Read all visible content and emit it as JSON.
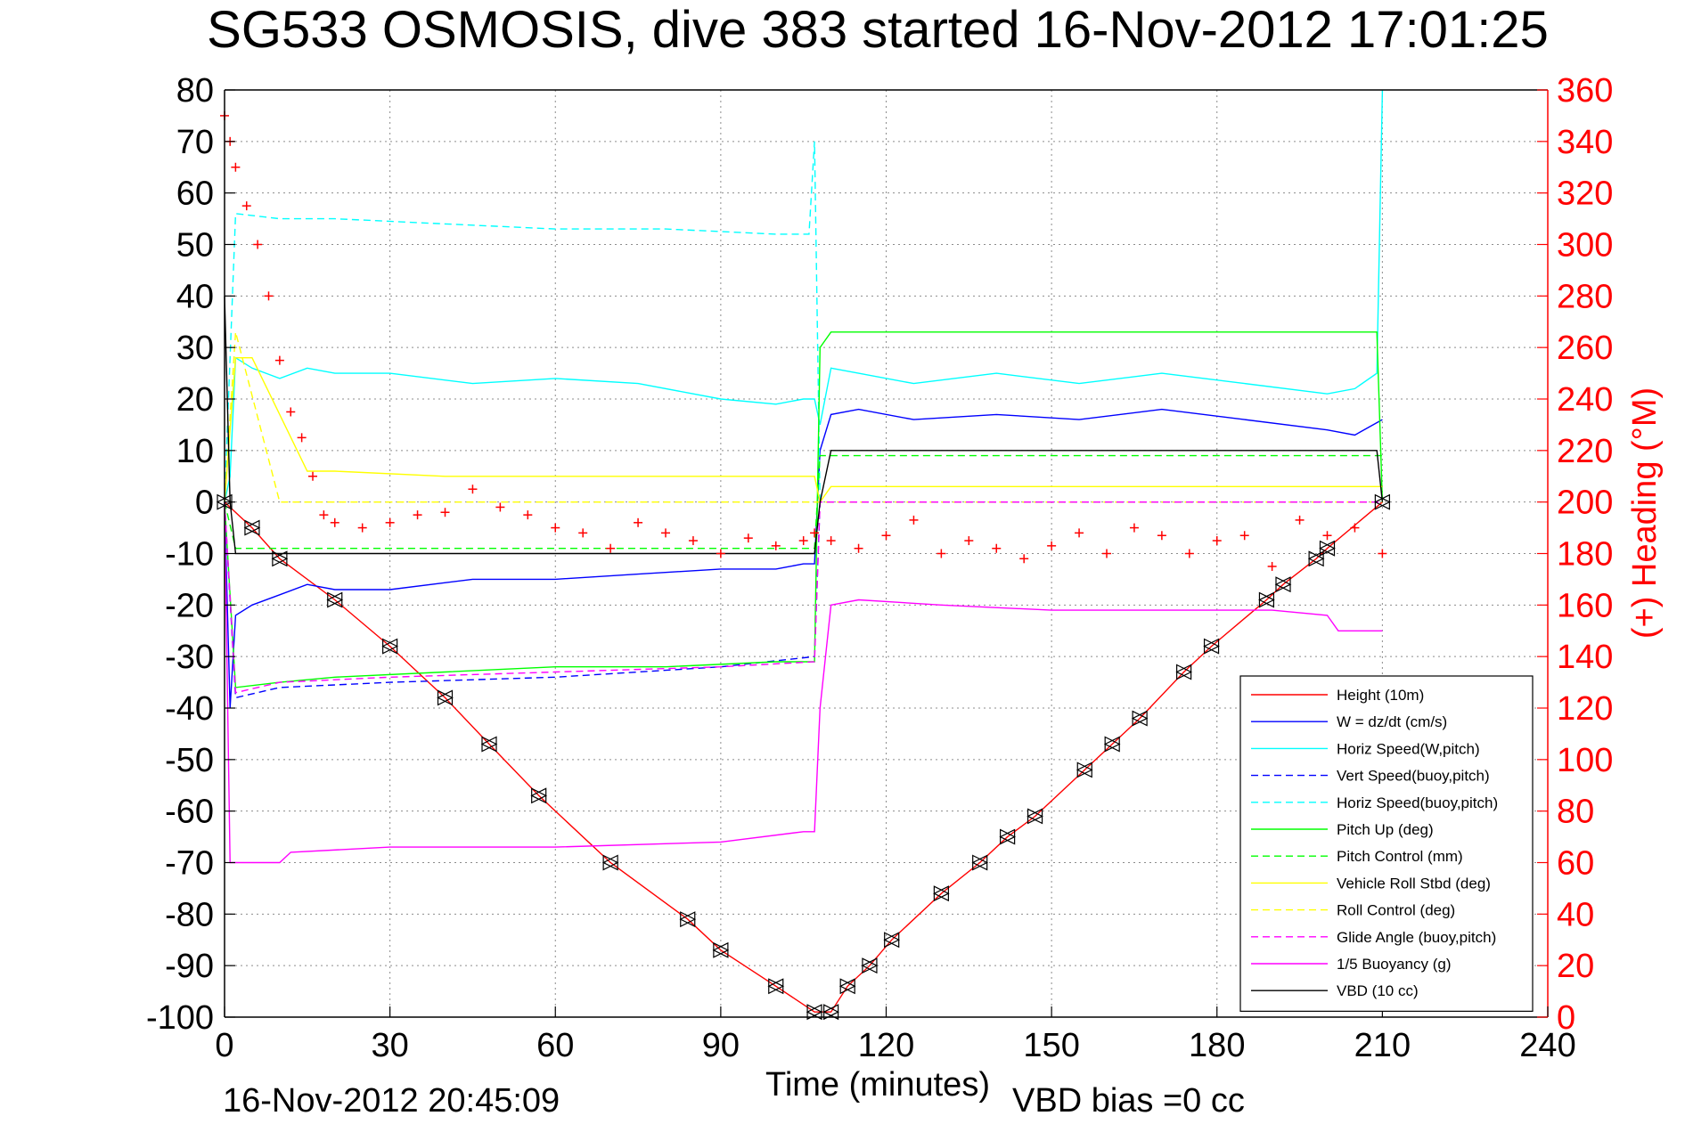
{
  "chart_data": {
    "type": "line",
    "title": "SG533 OSMOSIS, dive 383 started 16-Nov-2012 17:01:25",
    "xlabel": "Time (minutes)",
    "ylabel": "",
    "ylabel_right": "(+) Heading (°M)",
    "xlim": [
      0,
      240
    ],
    "ylim": [
      -100,
      80
    ],
    "ylim_right": [
      0,
      360
    ],
    "x_ticks": [
      "0",
      "30",
      "60",
      "90",
      "120",
      "150",
      "180",
      "210",
      "240"
    ],
    "y_ticks": [
      "80",
      "70",
      "60",
      "50",
      "40",
      "30",
      "20",
      "10",
      "0",
      "-10",
      "-20",
      "-30",
      "-40",
      "-50",
      "-60",
      "-70",
      "-80",
      "-90",
      "-100"
    ],
    "y_ticks_right": [
      "360",
      "340",
      "320",
      "300",
      "280",
      "260",
      "240",
      "220",
      "200",
      "180",
      "160",
      "140",
      "120",
      "100",
      "80",
      "60",
      "40",
      "20",
      "0"
    ],
    "grid": true,
    "legend_position": "bottom-right",
    "footer_left": "16-Nov-2012 20:45:09",
    "footer_right": "VBD bias =0 cc",
    "colors": {
      "red": "#ff0000",
      "blue": "#0000ff",
      "cyan": "#00ffff",
      "green": "#00ff00",
      "yellow": "#ffff00",
      "magenta": "#ff00ff",
      "black": "#000000"
    },
    "series": [
      {
        "name": "Height (10m)",
        "color": "#ff0000",
        "style": "solid",
        "x": [
          0,
          5,
          10,
          20,
          30,
          40,
          48,
          57,
          70,
          84,
          90,
          100,
          107,
          110,
          113,
          117,
          121,
          130,
          137,
          142,
          147,
          156,
          161,
          166,
          174,
          179,
          189,
          192,
          198,
          200,
          210
        ],
        "y": [
          0,
          -5,
          -11,
          -19,
          -28,
          -38,
          -47,
          -57,
          -70,
          -81,
          -87,
          -94,
          -99,
          -99,
          -94,
          -90,
          -85,
          -76,
          -70,
          -65,
          -61,
          -52,
          -47,
          -42,
          -33,
          -28,
          -19,
          -16,
          -11,
          -9,
          0
        ]
      },
      {
        "name": "W = dz/dt (cm/s)",
        "color": "#0000ff",
        "style": "solid",
        "x": [
          0,
          1,
          2,
          5,
          10,
          15,
          20,
          30,
          45,
          60,
          75,
          90,
          100,
          105,
          107,
          108,
          110,
          115,
          125,
          140,
          155,
          170,
          185,
          200,
          205,
          210
        ],
        "y": [
          0,
          -40,
          -22,
          -20,
          -18,
          -16,
          -17,
          -17,
          -15,
          -15,
          -14,
          -13,
          -13,
          -12,
          -12,
          10,
          17,
          18,
          16,
          17,
          16,
          18,
          16,
          14,
          13,
          16
        ]
      },
      {
        "name": "Horiz Speed(W,pitch)",
        "color": "#00ffff",
        "style": "solid",
        "x": [
          0,
          1,
          2,
          5,
          10,
          15,
          20,
          30,
          45,
          60,
          75,
          90,
          100,
          105,
          107,
          108,
          110,
          115,
          125,
          140,
          155,
          170,
          185,
          200,
          205,
          209,
          210
        ],
        "y": [
          0,
          5,
          28,
          26,
          24,
          26,
          25,
          25,
          23,
          24,
          23,
          20,
          19,
          20,
          20,
          15,
          26,
          25,
          23,
          25,
          23,
          25,
          23,
          21,
          22,
          25,
          80
        ]
      },
      {
        "name": "Vert Speed(buoy,pitch)",
        "color": "#0000ff",
        "style": "dashed",
        "x": [
          0,
          2,
          10,
          30,
          60,
          90,
          107,
          108,
          210
        ],
        "y": [
          0,
          -38,
          -36,
          -35,
          -34,
          -32,
          -30,
          0,
          0
        ]
      },
      {
        "name": "Horiz Speed(buoy,pitch)",
        "color": "#00ffff",
        "style": "dashed",
        "x": [
          0,
          2,
          10,
          20,
          40,
          60,
          80,
          100,
          106,
          107,
          108
        ],
        "y": [
          0,
          56,
          55,
          55,
          54,
          53,
          53,
          52,
          52,
          70,
          0
        ]
      },
      {
        "name": "Pitch Up (deg)",
        "color": "#00ff00",
        "style": "solid",
        "x": [
          0,
          2,
          10,
          20,
          40,
          60,
          80,
          100,
          107,
          108,
          110,
          130,
          150,
          170,
          190,
          209,
          210
        ],
        "y": [
          0,
          -36,
          -35,
          -34,
          -33,
          -32,
          -32,
          -31,
          -31,
          30,
          33,
          33,
          33,
          33,
          33,
          33,
          0
        ]
      },
      {
        "name": "Pitch Control (mm)",
        "color": "#00ff00",
        "style": "dashed",
        "x": [
          0,
          2,
          107,
          108,
          210
        ],
        "y": [
          0,
          -9,
          -9,
          9,
          9
        ]
      },
      {
        "name": "Vehicle Roll Stbd (deg)",
        "color": "#ffff00",
        "style": "solid",
        "x": [
          0,
          2,
          5,
          15,
          20,
          40,
          60,
          80,
          100,
          107,
          108,
          110,
          130,
          150,
          170,
          190,
          210
        ],
        "y": [
          0,
          28,
          28,
          6,
          6,
          5,
          5,
          5,
          5,
          5,
          0,
          3,
          3,
          3,
          3,
          3,
          3
        ]
      },
      {
        "name": "Roll Control (deg)",
        "color": "#ffff00",
        "style": "dashed",
        "x": [
          0,
          2,
          10,
          210
        ],
        "y": [
          0,
          33,
          0,
          0
        ]
      },
      {
        "name": "Glide Angle (buoy,pitch)",
        "color": "#ff00ff",
        "style": "dashed",
        "x": [
          0,
          2,
          10,
          30,
          60,
          90,
          107,
          108,
          210
        ],
        "y": [
          0,
          -37,
          -35,
          -34,
          -33,
          -32,
          -31,
          0,
          0
        ]
      },
      {
        "name": "1/5 Buoyancy (g)",
        "color": "#ff00ff",
        "style": "solid",
        "x": [
          0,
          1,
          2,
          10,
          12,
          30,
          60,
          90,
          105,
          107,
          108,
          110,
          115,
          130,
          150,
          170,
          190,
          200,
          202,
          210
        ],
        "y": [
          0,
          -70,
          -70,
          -70,
          -68,
          -67,
          -67,
          -66,
          -64,
          -64,
          -40,
          -20,
          -19,
          -20,
          -21,
          -21,
          -21,
          -22,
          -25,
          -25
        ]
      },
      {
        "name": "VBD (10 cc)",
        "color": "#000000",
        "style": "solid",
        "x": [
          0,
          1,
          2,
          5,
          107,
          108,
          110,
          209,
          210
        ],
        "y": [
          40,
          0,
          -10,
          -10,
          -10,
          0,
          10,
          10,
          0
        ]
      }
    ],
    "heading_series": {
      "name": "(+) Heading",
      "color": "#ff0000",
      "marker": "+",
      "x": [
        0,
        1,
        2,
        4,
        6,
        8,
        10,
        12,
        14,
        16,
        18,
        20,
        25,
        30,
        35,
        40,
        45,
        50,
        55,
        60,
        65,
        70,
        75,
        80,
        85,
        90,
        95,
        100,
        105,
        107,
        110,
        115,
        120,
        125,
        130,
        135,
        140,
        145,
        150,
        155,
        160,
        165,
        170,
        175,
        180,
        185,
        190,
        195,
        200,
        205,
        210
      ],
      "y": [
        350,
        340,
        330,
        315,
        300,
        280,
        255,
        235,
        225,
        210,
        195,
        192,
        190,
        192,
        195,
        196,
        205,
        198,
        195,
        190,
        188,
        182,
        192,
        188,
        185,
        180,
        186,
        183,
        185,
        188,
        185,
        182,
        187,
        193,
        180,
        185,
        182,
        178,
        183,
        188,
        180,
        190,
        187,
        180,
        185,
        187,
        175,
        193,
        187,
        190,
        180
      ]
    }
  }
}
